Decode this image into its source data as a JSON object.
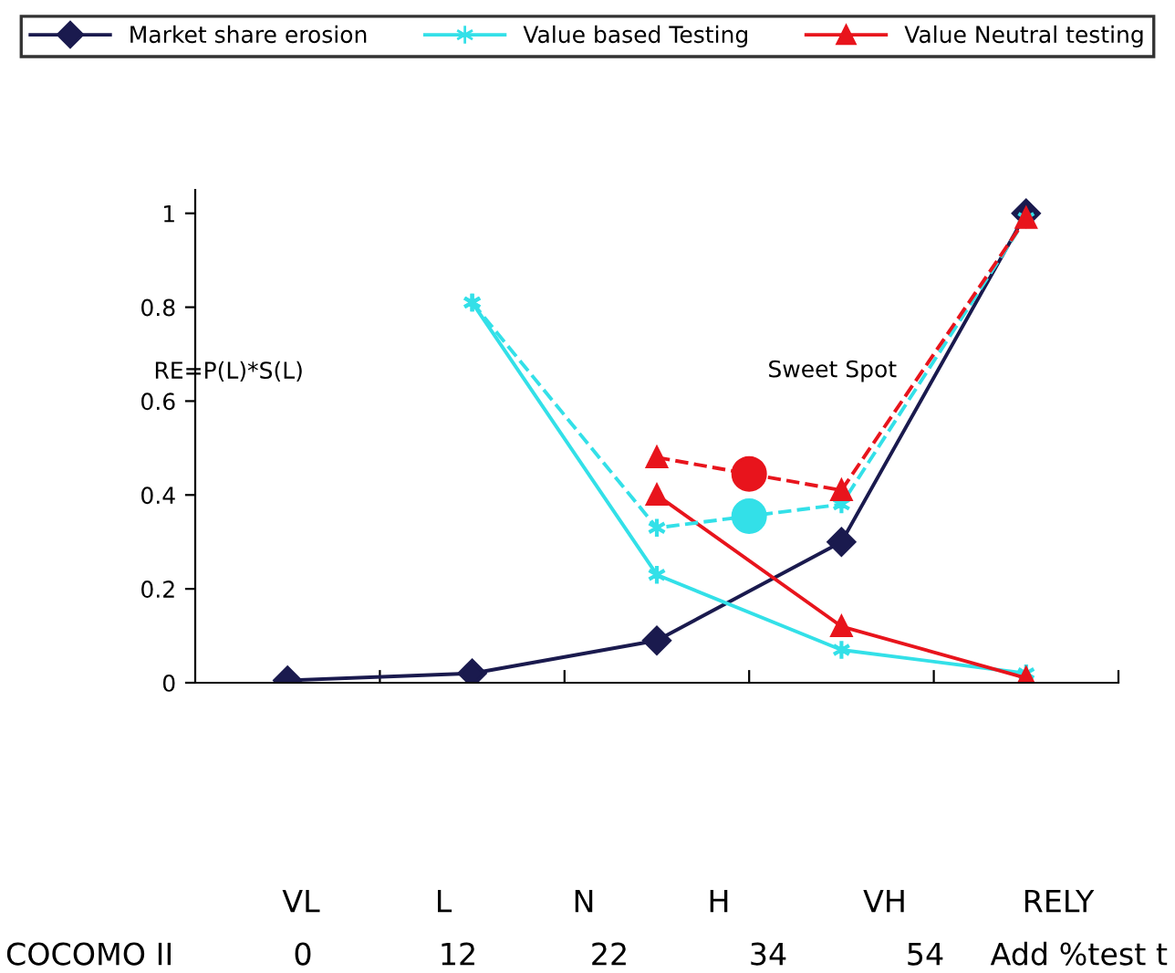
{
  "chart_data": {
    "type": "line",
    "ylabel": "RE=P(L)*S(L)",
    "categories": [
      null,
      null,
      null,
      null,
      null
    ],
    "ylim": [
      0,
      1.05
    ],
    "yticks": [
      0,
      0.2,
      0.4,
      0.6,
      0.8,
      1
    ],
    "grid": false,
    "legend": "top",
    "line_style": "solid",
    "series": [
      {
        "name": "Market share erosion",
        "color": "#1a1a4e",
        "marker": "diamond",
        "values": [
          0.005,
          0.02,
          0.09,
          0.3,
          1.0
        ]
      },
      {
        "name": "Value based Testing",
        "color": "#33e0e8",
        "marker": "cross",
        "values": [
          null,
          0.81,
          0.23,
          0.07,
          0.02
        ]
      },
      {
        "name": "Value Neutral testing",
        "color": "#e8141c",
        "marker": "triangle",
        "values": [
          null,
          null,
          0.4,
          0.12,
          0.01
        ]
      },
      {
        "color": "#33e0e8",
        "marker": "cross",
        "line_style": "dashed",
        "values": [
          null,
          0.81,
          0.33,
          0.38,
          0.99
        ]
      },
      {
        "color": "#e8141c",
        "marker": "triangle",
        "line_style": "dashed",
        "values": [
          null,
          null,
          0.48,
          0.41,
          0.99
        ]
      }
    ],
    "annotations": [
      "Sweet Spot",
      "VL",
      "L",
      "N",
      "H",
      "VH",
      "RELY",
      "COCOMO II",
      "0",
      "12",
      "22",
      "34",
      "54",
      "Add %test t"
    ]
  }
}
